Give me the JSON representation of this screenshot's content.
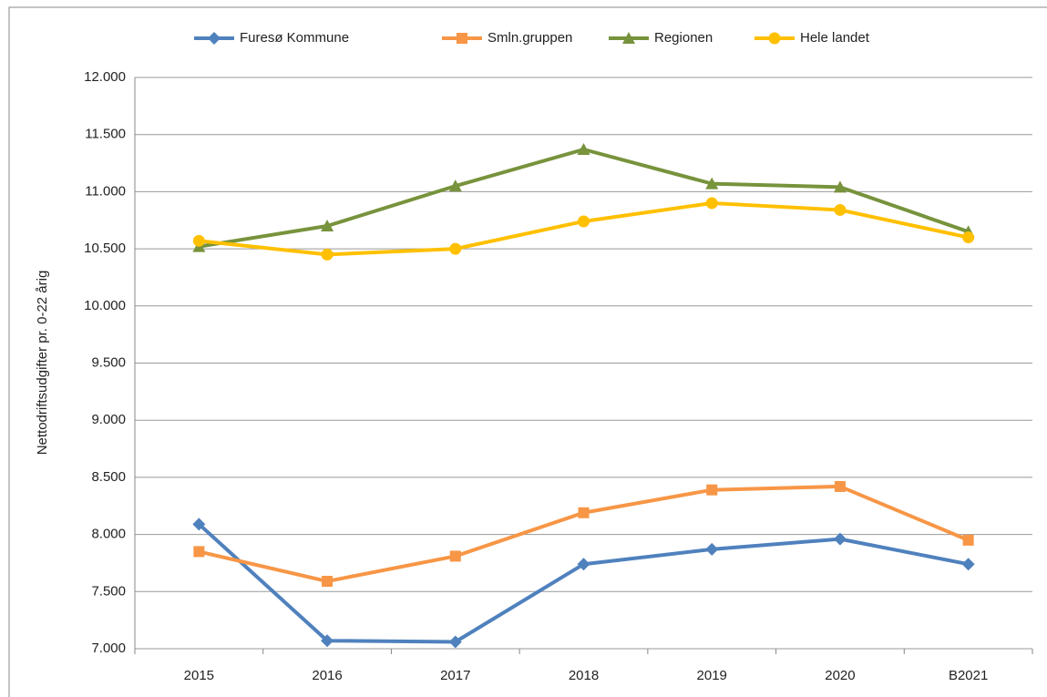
{
  "chart_data": {
    "type": "line",
    "y_label": "Nettodriftsudgifter pr. 0-22 årig",
    "categories": [
      "2015",
      "2016",
      "2017",
      "2018",
      "2019",
      "2020",
      "B2021"
    ],
    "series": [
      {
        "name": "Furesø Kommune",
        "color": "#4f81bd",
        "marker": "diamond",
        "values": [
          8090,
          7070,
          7060,
          7740,
          7870,
          7960,
          7740
        ]
      },
      {
        "name": "Smln.gruppen",
        "color": "#f79646",
        "marker": "square",
        "values": [
          7850,
          7590,
          7810,
          8190,
          8390,
          8420,
          7950
        ]
      },
      {
        "name": "Regionen",
        "color": "#77933c",
        "marker": "triangle",
        "values": [
          10520,
          10700,
          11050,
          11370,
          11070,
          11040,
          10650
        ]
      },
      {
        "name": "Hele landet",
        "color": "#ffc000",
        "marker": "circle",
        "values": [
          10570,
          10450,
          10500,
          10740,
          10900,
          10840,
          10600
        ]
      }
    ],
    "ylim": [
      7000,
      12000
    ],
    "yticks": [
      {
        "value": 7000,
        "label": "7.000"
      },
      {
        "value": 7500,
        "label": "7.500"
      },
      {
        "value": 8000,
        "label": "8.000"
      },
      {
        "value": 8500,
        "label": "8.500"
      },
      {
        "value": 9000,
        "label": "9.000"
      },
      {
        "value": 9500,
        "label": "9.500"
      },
      {
        "value": 10000,
        "label": "10.000"
      },
      {
        "value": 10500,
        "label": "10.500"
      },
      {
        "value": 11000,
        "label": "11.000"
      },
      {
        "value": 11500,
        "label": "11.500"
      },
      {
        "value": 12000,
        "label": "12.000"
      }
    ],
    "grid": true,
    "legend": "top"
  }
}
